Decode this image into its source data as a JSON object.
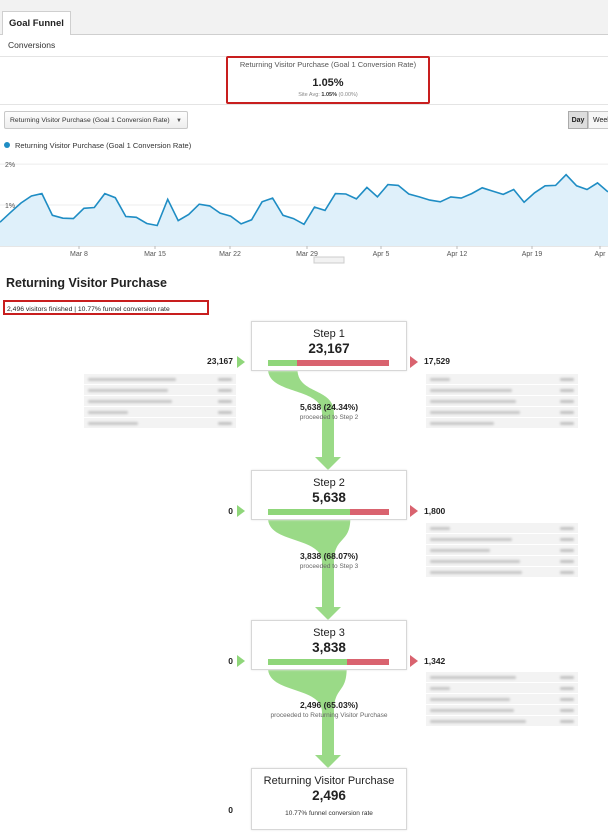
{
  "header": {
    "tab_label": "Goal Funnel",
    "subtab_label": "Conversions"
  },
  "metric": {
    "label": "Returning Visitor Purchase (Goal 1 Conversion Rate)",
    "value": "1.05%",
    "site_avg_label": "Site Avg:",
    "site_avg_value": "1.05%",
    "site_avg_delta": "(0.00%)"
  },
  "controls": {
    "metric_dropdown": "Returning Visitor Purchase (Goal 1 Conversion Rate)",
    "day_button": "Day",
    "week_button": "Week"
  },
  "colors": {
    "line": "#1f8dc4",
    "area": "#dff0fa",
    "green": "#8fd67a",
    "red": "#d9636f",
    "highlight_border": "#c81e1e"
  },
  "chart_data": {
    "type": "area",
    "legend": "Returning Visitor Purchase (Goal 1 Conversion Rate)",
    "y_ticks": [
      "2%",
      "1%"
    ],
    "x_ticks": [
      "Mar 8",
      "Mar 15",
      "Mar 22",
      "Mar 29",
      "Apr 5",
      "Apr 12",
      "Apr 19",
      "Apr"
    ],
    "ylim": [
      0,
      2.1
    ],
    "unit": "%",
    "values": [
      0.58,
      0.82,
      1.05,
      1.22,
      1.28,
      0.75,
      0.68,
      0.67,
      0.92,
      0.94,
      1.28,
      1.18,
      0.72,
      0.7,
      0.55,
      0.5,
      1.14,
      0.62,
      0.77,
      1.02,
      0.98,
      0.8,
      0.73,
      0.54,
      0.64,
      1.08,
      1.17,
      0.75,
      0.67,
      0.53,
      0.95,
      0.87,
      1.28,
      1.27,
      1.15,
      1.43,
      1.2,
      1.5,
      1.48,
      1.27,
      1.2,
      1.12,
      1.08,
      1.2,
      1.17,
      1.28,
      1.42,
      1.34,
      1.26,
      1.38,
      1.07,
      1.3,
      1.47,
      1.48,
      1.74,
      1.47,
      1.38,
      1.54,
      1.32
    ]
  },
  "funnel": {
    "title": "Returning Visitor Purchase",
    "finished_summary": "2,496 visitors finished | 10.77% funnel conversion rate",
    "steps": [
      {
        "name": "Step 1",
        "value": "23,167",
        "entries": "23,167",
        "exits": "17,529",
        "proceed_fraction": 0.2434,
        "proceed_value": "5,638 (24.34%)",
        "proceed_label": "proceeded to Step 2"
      },
      {
        "name": "Step 2",
        "value": "5,638",
        "entries": "0",
        "exits": "1,800",
        "proceed_fraction": 0.6807,
        "proceed_value": "3,838 (68.07%)",
        "proceed_label": "proceeded to Step 3"
      },
      {
        "name": "Step 3",
        "value": "3,838",
        "entries": "0",
        "exits": "1,342",
        "proceed_fraction": 0.6503,
        "proceed_value": "2,496 (65.03%)",
        "proceed_label": "proceeded to Returning Visitor Purchase"
      }
    ],
    "goal": {
      "name": "Returning Visitor Purchase",
      "value": "2,496",
      "entries": "0",
      "conversion_rate": "10.77% funnel conversion rate"
    }
  }
}
